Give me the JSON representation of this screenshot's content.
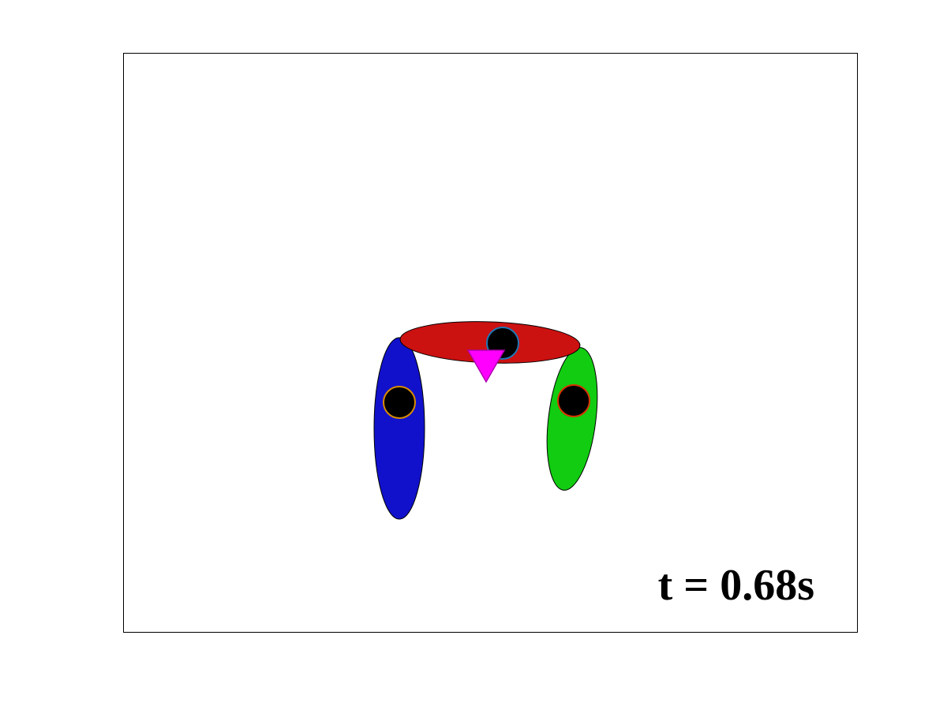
{
  "time_label": "t = 0.68s",
  "bodies": [
    {
      "name": "torso",
      "color": "#cc1111"
    },
    {
      "name": "left-leg",
      "color": "#1111cc"
    },
    {
      "name": "right-leg",
      "color": "#11cc11"
    }
  ],
  "joints": [
    {
      "name": "hip-joint",
      "fill": "#000000",
      "stroke": "#1f77b4"
    },
    {
      "name": "left-leg-joint",
      "fill": "#000000",
      "stroke": "#d98c00"
    },
    {
      "name": "right-leg-joint",
      "fill": "#000000",
      "stroke": "#d93300"
    }
  ],
  "marker": {
    "name": "center-of-mass-marker",
    "color": "#ff00ff"
  },
  "colors": {
    "axes_border": "#000000",
    "background": "#ffffff"
  }
}
